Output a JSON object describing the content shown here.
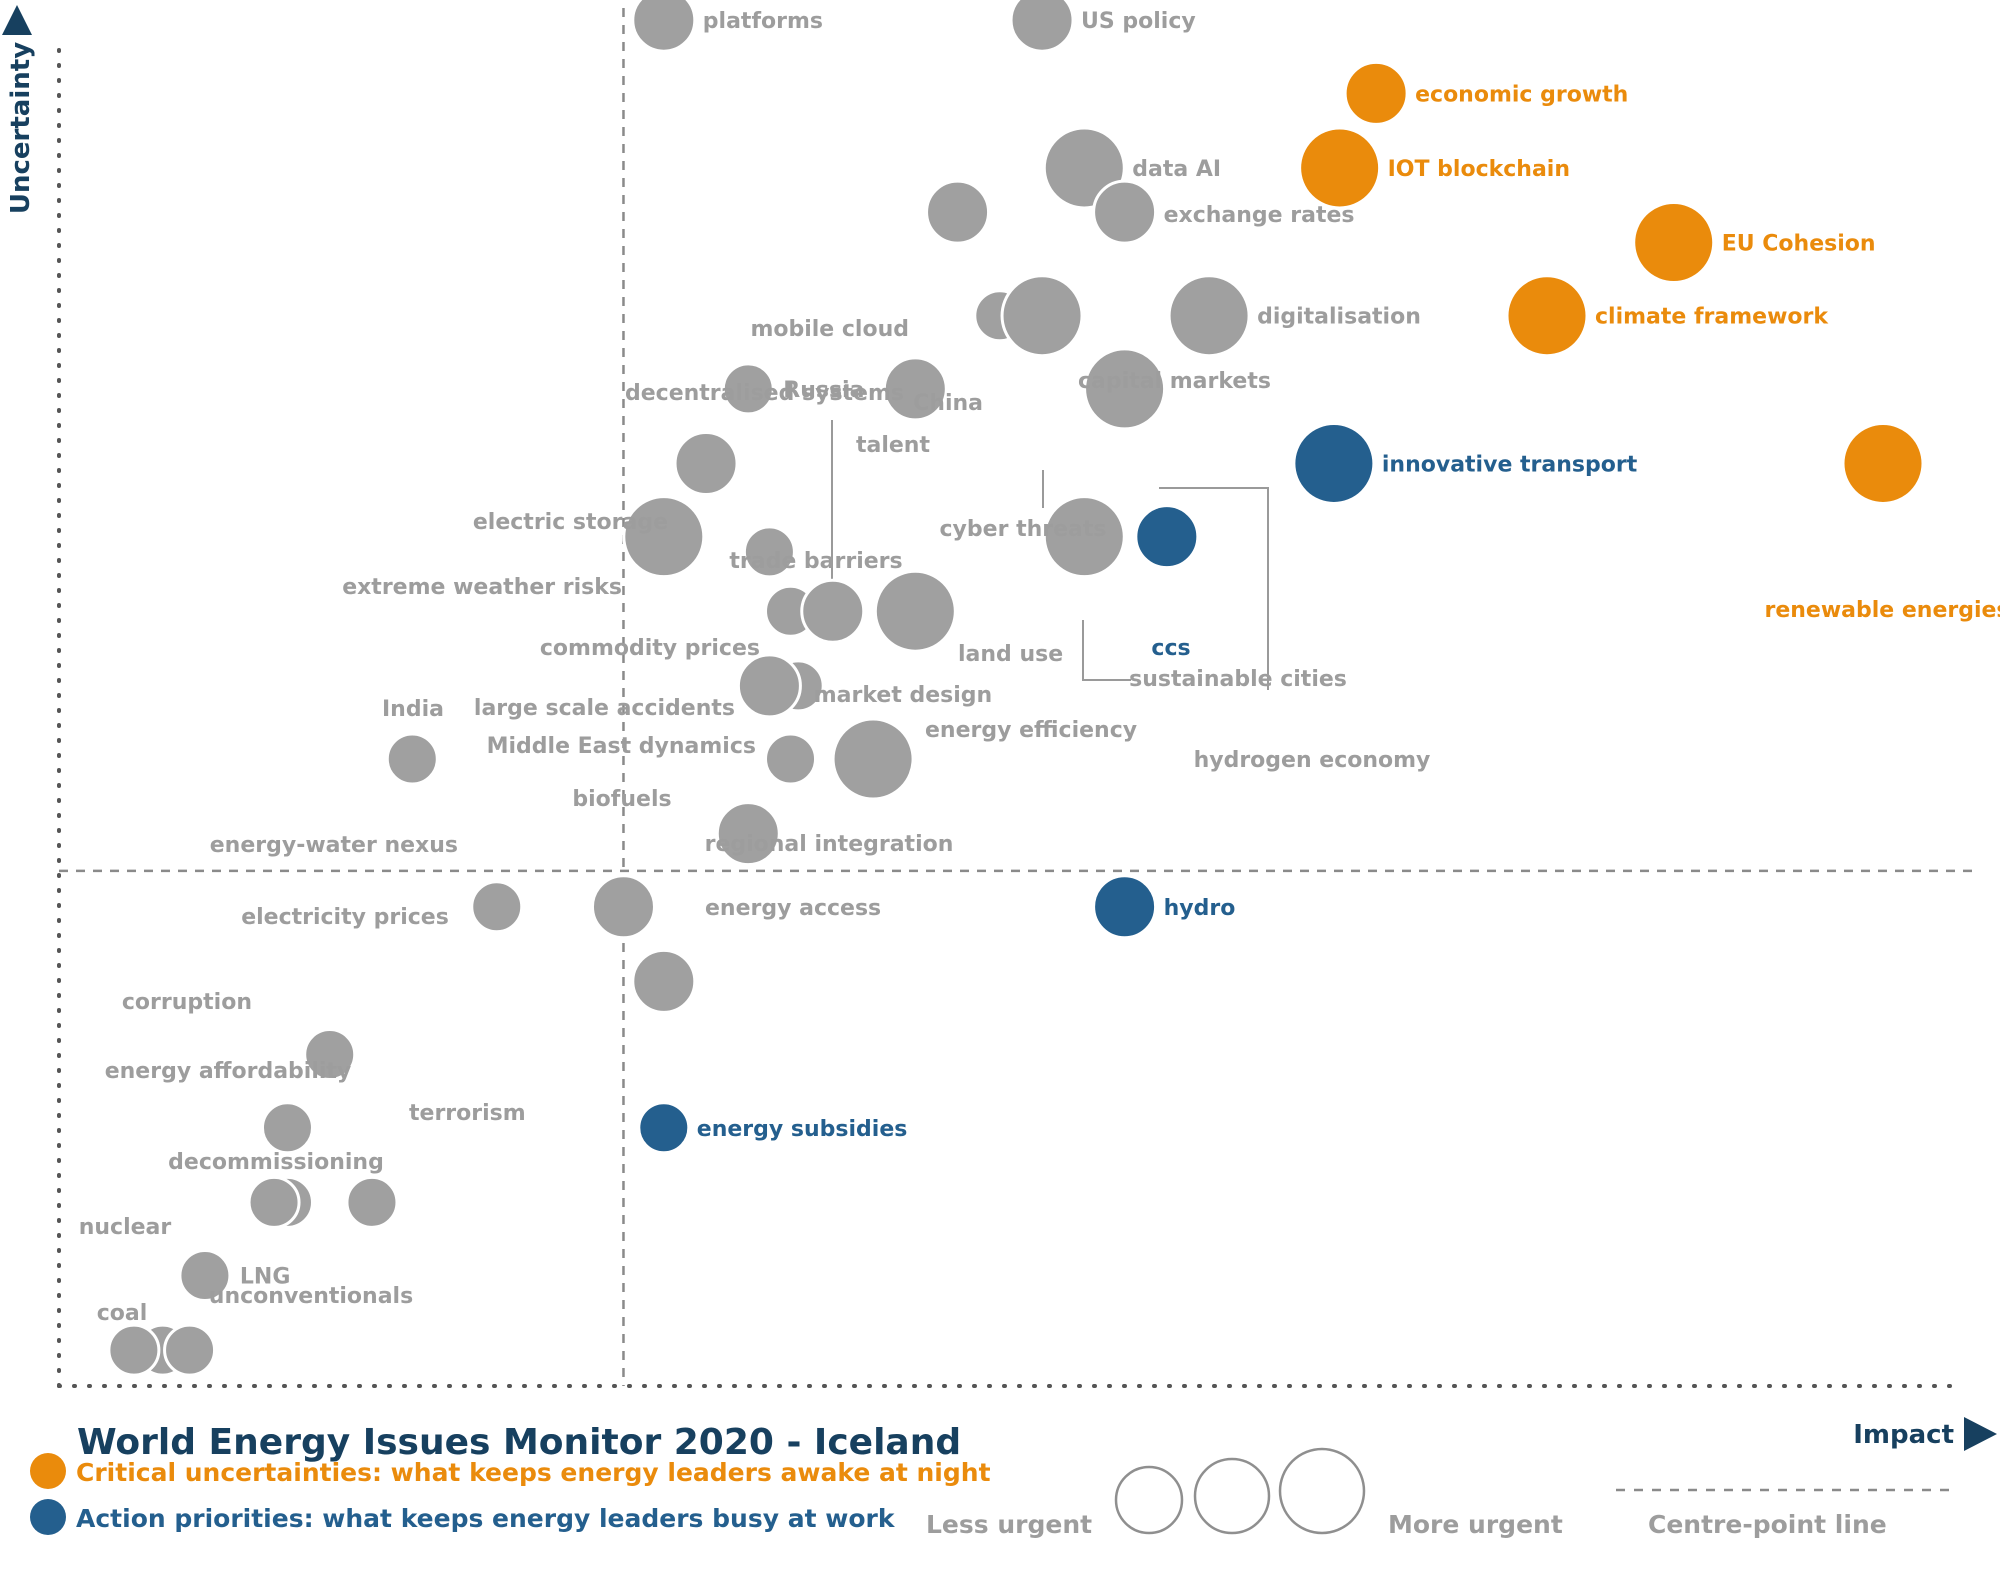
{
  "colors": {
    "grey": "#a0a0a0",
    "orange": "#ea8b0c",
    "blue": "#245f8e",
    "grey_text": "#9d9d9d",
    "navy": "#17405f",
    "axis": "#555555"
  },
  "chart_data": {
    "type": "scatter",
    "title": "World Energy Issues Monitor 2020 - Iceland",
    "xlabel": "Impact",
    "ylabel": "Uncertainty",
    "xlim": [
      0,
      100
    ],
    "ylim": [
      0,
      100
    ],
    "centre_point": {
      "x": 29.4,
      "y": 37.3
    },
    "points": [
      {
        "name": "platforms",
        "x": 31.5,
        "y": 98.9,
        "size": 2,
        "category": "other"
      },
      {
        "name": "US policy",
        "x": 51.2,
        "y": 98.9,
        "size": 2,
        "category": "other"
      },
      {
        "name": "economic growth",
        "x": 68.6,
        "y": 93.6,
        "size": 2,
        "category": "critical"
      },
      {
        "name": "data AI",
        "x": 53.4,
        "y": 88.2,
        "size": 3,
        "category": "other"
      },
      {
        "name": "IOT blockchain",
        "x": 66.7,
        "y": 88.2,
        "size": 3,
        "category": "critical"
      },
      {
        "name": "mobile cloud",
        "x": 46.8,
        "y": 85.0,
        "size": 2,
        "category": "other"
      },
      {
        "name": "exchange rates",
        "x": 55.5,
        "y": 85.0,
        "size": 2,
        "category": "other"
      },
      {
        "name": "EU Cohesion",
        "x": 84.1,
        "y": 82.8,
        "size": 3,
        "category": "critical"
      },
      {
        "name": "capital markets",
        "x": 51.2,
        "y": 78.1,
        "size": 2,
        "category": "other"
      },
      {
        "name": "China",
        "x": 49.0,
        "y": 77.5,
        "size": 1,
        "category": "other"
      },
      {
        "name": "decentralised systems",
        "x": 51.2,
        "y": 77.5,
        "size": 3,
        "category": "other"
      },
      {
        "name": "digitalisation",
        "x": 59.9,
        "y": 77.5,
        "size": 3,
        "category": "other"
      },
      {
        "name": "climate framework",
        "x": 77.5,
        "y": 77.5,
        "size": 3,
        "category": "critical"
      },
      {
        "name": "talent",
        "x": 44.6,
        "y": 72.2,
        "size": 2,
        "category": "other"
      },
      {
        "name": "cyber threats",
        "x": 55.5,
        "y": 72.2,
        "size": 3,
        "category": "other"
      },
      {
        "name": "Russia",
        "x": 35.9,
        "y": 72.2,
        "size": 1,
        "category": "other"
      },
      {
        "name": "innovative transport",
        "x": 66.4,
        "y": 66.8,
        "size": 3,
        "category": "action"
      },
      {
        "name": "renewable energies",
        "x": 95.0,
        "y": 66.8,
        "size": 3,
        "category": "critical"
      },
      {
        "name": "electric storage",
        "x": 33.7,
        "y": 66.8,
        "size": 2,
        "category": "other"
      },
      {
        "name": "extreme weather risks",
        "x": 31.5,
        "y": 61.5,
        "size": 3,
        "category": "other"
      },
      {
        "name": "ccs",
        "x": 57.7,
        "y": 61.5,
        "size": 2,
        "category": "action"
      },
      {
        "name": "sustainable cities",
        "x": 53.4,
        "y": 61.5,
        "size": 3,
        "category": "other"
      },
      {
        "name": "trade barriers",
        "x": 37.0,
        "y": 60.4,
        "size": 1,
        "category": "other"
      },
      {
        "name": "commodity prices",
        "x": 38.1,
        "y": 56.1,
        "size": 1,
        "category": "other"
      },
      {
        "name": "hydrogen economy",
        "x": 40.3,
        "y": 56.1,
        "size": 2,
        "category": "other"
      },
      {
        "name": "land use",
        "x": 44.6,
        "y": 56.1,
        "size": 3,
        "category": "other"
      },
      {
        "name": "market design",
        "x": 38.5,
        "y": 50.7,
        "size": 1,
        "category": "other"
      },
      {
        "name": "large scale accidents",
        "x": 37.0,
        "y": 50.7,
        "size": 2,
        "category": "other"
      },
      {
        "name": "India",
        "x": 18.4,
        "y": 45.4,
        "size": 1,
        "category": "other"
      },
      {
        "name": "Middle East dynamics",
        "x": 38.1,
        "y": 45.4,
        "size": 1,
        "category": "other"
      },
      {
        "name": "energy efficiency",
        "x": 42.4,
        "y": 45.4,
        "size": 3,
        "category": "other"
      },
      {
        "name": "regional integration",
        "x": 35.9,
        "y": 40.0,
        "size": 2,
        "category": "other"
      },
      {
        "name": "energy-water nexus",
        "x": 22.8,
        "y": 34.7,
        "size": 1,
        "category": "other"
      },
      {
        "name": "biofuels",
        "x": 29.4,
        "y": 34.7,
        "size": 2,
        "category": "other"
      },
      {
        "name": "hydro",
        "x": 55.5,
        "y": 34.7,
        "size": 2,
        "category": "action"
      },
      {
        "name": "energy access",
        "x": 31.5,
        "y": 29.3,
        "size": 2,
        "category": "other"
      },
      {
        "name": "electricity prices",
        "x": 14.1,
        "y": 24.0,
        "size": 1,
        "category": "other"
      },
      {
        "name": "corruption",
        "x": 11.9,
        "y": 18.7,
        "size": 1,
        "category": "other"
      },
      {
        "name": "energy subsidies",
        "x": 31.5,
        "y": 18.7,
        "size": 1,
        "category": "action"
      },
      {
        "name": "energy affordability",
        "x": 11.9,
        "y": 13.3,
        "size": 1,
        "category": "other"
      },
      {
        "name": "decommissioning",
        "x": 11.2,
        "y": 13.3,
        "size": 1,
        "category": "other"
      },
      {
        "name": "terrorism",
        "x": 16.3,
        "y": 13.3,
        "size": 1,
        "category": "other"
      },
      {
        "name": "LNG",
        "x": 7.6,
        "y": 8.0,
        "size": 1,
        "category": "other"
      },
      {
        "name": "nuclear",
        "x": 5.4,
        "y": 2.6,
        "size": 1,
        "category": "other"
      },
      {
        "name": "coal",
        "x": 3.9,
        "y": 2.6,
        "size": 1,
        "category": "other"
      },
      {
        "name": "unconventionals",
        "x": 6.8,
        "y": 2.6,
        "size": 1,
        "category": "other"
      }
    ],
    "legend": {
      "critical": "Critical uncertainties: what keeps energy leaders awake at night",
      "action": "Action priorities: what keeps energy leaders busy at work",
      "less_urgent": "Less urgent",
      "more_urgent": "More urgent",
      "centre_line": "Centre-point  line"
    }
  }
}
